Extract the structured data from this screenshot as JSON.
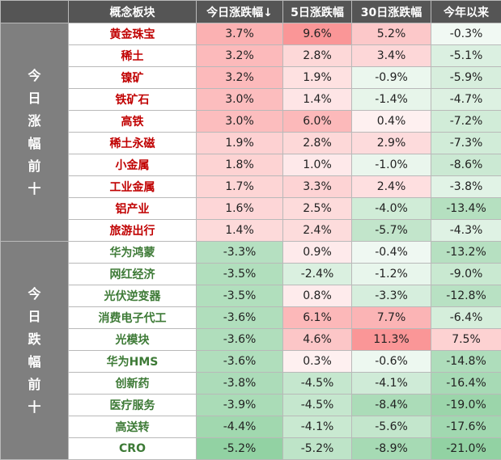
{
  "chart_data": {
    "type": "table",
    "columns": [
      "概念板块",
      "今日涨跌幅↓",
      "5日涨跌幅",
      "30日涨跌幅",
      "今年以来"
    ],
    "colors": {
      "header_bg": "#555555",
      "group_bg": "#7f7f7f",
      "up_text": "#c00000",
      "down_text": "#3d7a36",
      "positive_cell": "#f8696b",
      "negative_cell": "#63be7b"
    },
    "groups": [
      {
        "label": "今日涨幅前十",
        "name_class": "up",
        "rows": [
          {
            "name": "黄金珠宝",
            "cells": [
              "3.7%",
              "9.6%",
              "5.2%",
              "-0.3%"
            ],
            "values": [
              3.7,
              9.6,
              5.2,
              -0.3
            ]
          },
          {
            "name": "稀土",
            "cells": [
              "3.2%",
              "2.8%",
              "3.4%",
              "-5.1%"
            ],
            "values": [
              3.2,
              2.8,
              3.4,
              -5.1
            ]
          },
          {
            "name": "镍矿",
            "cells": [
              "3.2%",
              "1.9%",
              "-0.9%",
              "-5.9%"
            ],
            "values": [
              3.2,
              1.9,
              -0.9,
              -5.9
            ]
          },
          {
            "name": "铁矿石",
            "cells": [
              "3.0%",
              "1.4%",
              "-1.4%",
              "-4.7%"
            ],
            "values": [
              3.0,
              1.4,
              -1.4,
              -4.7
            ]
          },
          {
            "name": "高铁",
            "cells": [
              "3.0%",
              "6.0%",
              "0.4%",
              "-7.2%"
            ],
            "values": [
              3.0,
              6.0,
              0.4,
              -7.2
            ]
          },
          {
            "name": "稀土永磁",
            "cells": [
              "1.9%",
              "2.8%",
              "2.9%",
              "-7.3%"
            ],
            "values": [
              1.9,
              2.8,
              2.9,
              -7.3
            ]
          },
          {
            "name": "小金属",
            "cells": [
              "1.8%",
              "1.0%",
              "-1.0%",
              "-8.6%"
            ],
            "values": [
              1.8,
              1.0,
              -1.0,
              -8.6
            ]
          },
          {
            "name": "工业金属",
            "cells": [
              "1.7%",
              "3.3%",
              "2.4%",
              "-3.8%"
            ],
            "values": [
              1.7,
              3.3,
              2.4,
              -3.8
            ]
          },
          {
            "name": "铝产业",
            "cells": [
              "1.6%",
              "2.5%",
              "-4.0%",
              "-13.4%"
            ],
            "values": [
              1.6,
              2.5,
              -4.0,
              -13.4
            ]
          },
          {
            "name": "旅游出行",
            "cells": [
              "1.4%",
              "2.4%",
              "-5.7%",
              "-4.3%"
            ],
            "values": [
              1.4,
              2.4,
              -5.7,
              -4.3
            ]
          }
        ]
      },
      {
        "label": "今日跌幅前十",
        "name_class": "down",
        "rows": [
          {
            "name": "华为鸿蒙",
            "cells": [
              "-3.3%",
              "0.9%",
              "-0.4%",
              "-13.2%"
            ],
            "values": [
              -3.3,
              0.9,
              -0.4,
              -13.2
            ]
          },
          {
            "name": "网红经济",
            "cells": [
              "-3.5%",
              "-2.4%",
              "-1.2%",
              "-9.0%"
            ],
            "values": [
              -3.5,
              -2.4,
              -1.2,
              -9.0
            ]
          },
          {
            "name": "光伏逆变器",
            "cells": [
              "-3.5%",
              "0.8%",
              "-3.3%",
              "-12.8%"
            ],
            "values": [
              -3.5,
              0.8,
              -3.3,
              -12.8
            ]
          },
          {
            "name": "消费电子代工",
            "cells": [
              "-3.6%",
              "6.1%",
              "7.7%",
              "-6.4%"
            ],
            "values": [
              -3.6,
              6.1,
              7.7,
              -6.4
            ]
          },
          {
            "name": "光模块",
            "cells": [
              "-3.6%",
              "4.6%",
              "11.3%",
              "7.5%"
            ],
            "values": [
              -3.6,
              4.6,
              11.3,
              7.5
            ]
          },
          {
            "name": "华为HMS",
            "cells": [
              "-3.6%",
              "0.3%",
              "-0.6%",
              "-14.8%"
            ],
            "values": [
              -3.6,
              0.3,
              -0.6,
              -14.8
            ]
          },
          {
            "name": "创新药",
            "cells": [
              "-3.8%",
              "-4.5%",
              "-4.1%",
              "-16.4%"
            ],
            "values": [
              -3.8,
              -4.5,
              -4.1,
              -16.4
            ]
          },
          {
            "name": "医疗服务",
            "cells": [
              "-3.9%",
              "-4.5%",
              "-8.4%",
              "-19.0%"
            ],
            "values": [
              -3.9,
              -4.5,
              -8.4,
              -19.0
            ]
          },
          {
            "name": "高送转",
            "cells": [
              "-4.4%",
              "-4.1%",
              "-5.6%",
              "-17.6%"
            ],
            "values": [
              -4.4,
              -4.1,
              -5.6,
              -17.6
            ]
          },
          {
            "name": "CRO",
            "cells": [
              "-5.2%",
              "-5.2%",
              "-8.9%",
              "-21.0%"
            ],
            "values": [
              -5.2,
              -5.2,
              -8.9,
              -21.0
            ]
          }
        ]
      }
    ]
  }
}
